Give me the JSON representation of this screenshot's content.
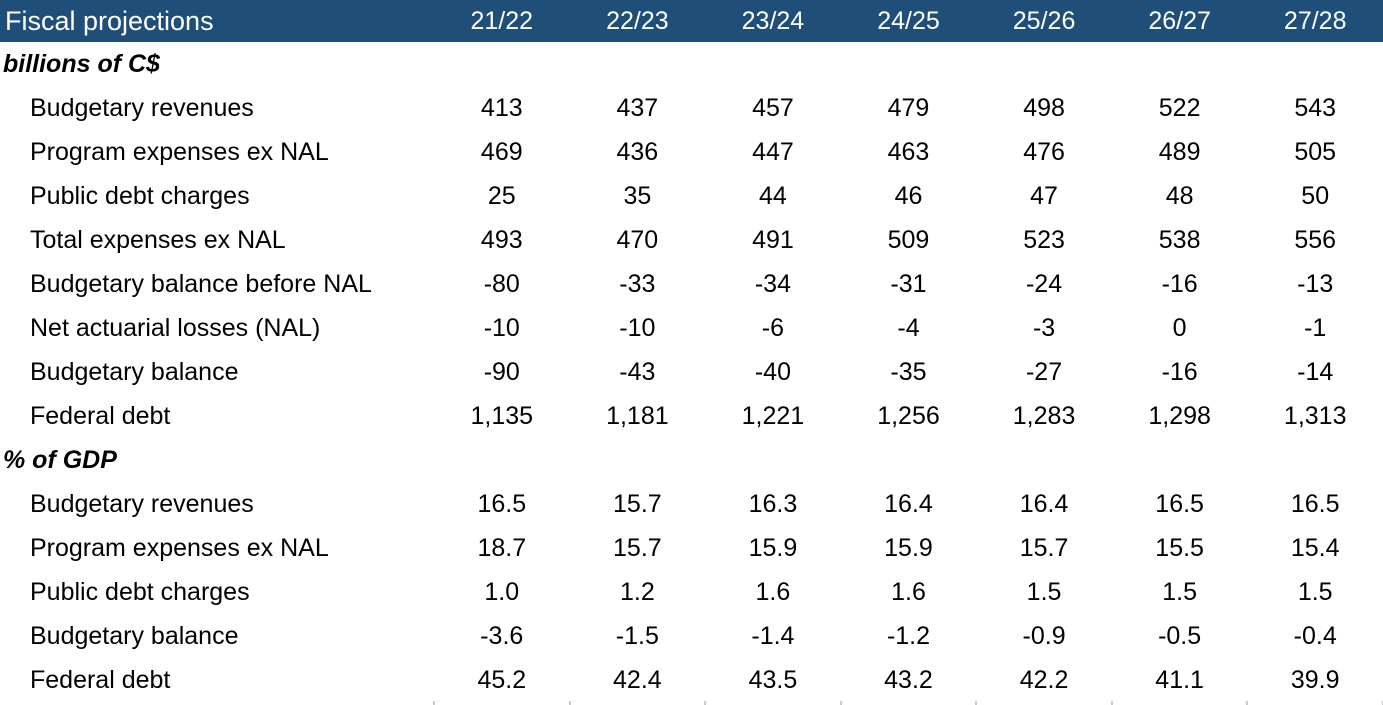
{
  "chart_data": {
    "type": "table",
    "title": "Fiscal projections",
    "columns": [
      "21/22",
      "22/23",
      "23/24",
      "24/25",
      "25/26",
      "26/27",
      "27/28"
    ],
    "sections": [
      {
        "label": "billions of C$",
        "rows": [
          {
            "label": "Budgetary revenues",
            "values": [
              "413",
              "437",
              "457",
              "479",
              "498",
              "522",
              "543"
            ]
          },
          {
            "label": "Program expenses ex NAL",
            "values": [
              "469",
              "436",
              "447",
              "463",
              "476",
              "489",
              "505"
            ]
          },
          {
            "label": "Public debt charges",
            "values": [
              "25",
              "35",
              "44",
              "46",
              "47",
              "48",
              "50"
            ]
          },
          {
            "label": "Total expenses ex NAL",
            "values": [
              "493",
              "470",
              "491",
              "509",
              "523",
              "538",
              "556"
            ]
          },
          {
            "label": "Budgetary balance before NAL",
            "values": [
              "-80",
              "-33",
              "-34",
              "-31",
              "-24",
              "-16",
              "-13"
            ]
          },
          {
            "label": "Net actuarial losses (NAL)",
            "values": [
              "-10",
              "-10",
              "-6",
              "-4",
              "-3",
              "0",
              "-1"
            ]
          },
          {
            "label": "Budgetary balance",
            "values": [
              "-90",
              "-43",
              "-40",
              "-35",
              "-27",
              "-16",
              "-14"
            ]
          },
          {
            "label": "Federal debt",
            "values": [
              "1,135",
              "1,181",
              "1,221",
              "1,256",
              "1,283",
              "1,298",
              "1,313"
            ]
          }
        ]
      },
      {
        "label": "% of GDP",
        "rows": [
          {
            "label": "Budgetary revenues",
            "values": [
              "16.5",
              "15.7",
              "16.3",
              "16.4",
              "16.4",
              "16.5",
              "16.5"
            ]
          },
          {
            "label": "Program expenses ex NAL",
            "values": [
              "18.7",
              "15.7",
              "15.9",
              "15.9",
              "15.7",
              "15.5",
              "15.4"
            ]
          },
          {
            "label": "Public debt charges",
            "values": [
              "1.0",
              "1.2",
              "1.6",
              "1.6",
              "1.5",
              "1.5",
              "1.5"
            ]
          },
          {
            "label": "Budgetary balance",
            "values": [
              "-3.6",
              "-1.5",
              "-1.4",
              "-1.2",
              "-0.9",
              "-0.5",
              "-0.4"
            ]
          },
          {
            "label": "Federal debt",
            "values": [
              "45.2",
              "42.4",
              "43.5",
              "43.2",
              "42.2",
              "41.1",
              "39.9"
            ]
          }
        ]
      }
    ]
  },
  "colors": {
    "header_bg": "#1F4E79",
    "header_text": "#FFFFFF",
    "body_text": "#000000",
    "bottom_tick": "#C9C9C9"
  }
}
